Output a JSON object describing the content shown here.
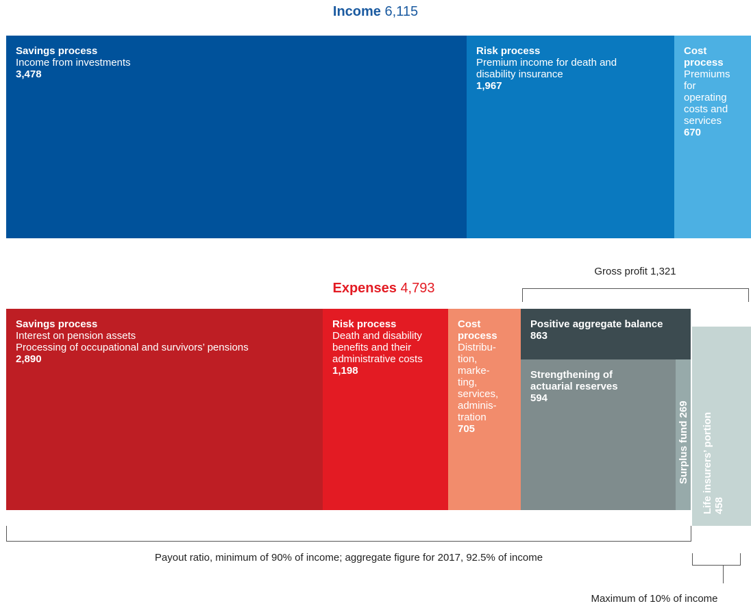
{
  "income": {
    "label": "Income",
    "total": "6,115",
    "blocks": [
      {
        "title": "Savings process",
        "text": "Income from investments",
        "value": "3,478"
      },
      {
        "title": "Risk process",
        "text": "Premium income for death and disability insurance",
        "value": "1,967"
      },
      {
        "title": "Cost process",
        "text": "Premiums for operating costs and services",
        "value": "670"
      }
    ]
  },
  "gross_profit": {
    "label": "Gross profit",
    "value": "1,321"
  },
  "expenses": {
    "label": "Expenses",
    "total": "4,793",
    "blocks": [
      {
        "title": "Savings process",
        "lines": [
          "Interest on pension assets",
          "Processing of occupational and survivors’ pensions"
        ],
        "value": "2,890"
      },
      {
        "title": "Risk process",
        "text": "Death and disability benefits and their administrative costs",
        "value": "1,198"
      },
      {
        "title": "Cost process",
        "lines": [
          "Distribu-",
          "tion,",
          "marke-",
          "ting,",
          "services,",
          "adminis-",
          "tration"
        ],
        "value": "705"
      }
    ]
  },
  "profit_blocks": {
    "positive": {
      "title": "Positive aggregate balance",
      "value": "863"
    },
    "reserves": {
      "title": "Strengthening of actuarial reserves",
      "value": "594"
    },
    "surplus": {
      "title": "Surplus fund",
      "value": "269"
    },
    "life": {
      "title": "Life insurers’ portion",
      "value": "458"
    }
  },
  "payout_note": "Payout ratio, minimum of 90% of income; aggregate figure for 2017, 92.5% of income",
  "max_note": "Maximum of 10% of income"
}
